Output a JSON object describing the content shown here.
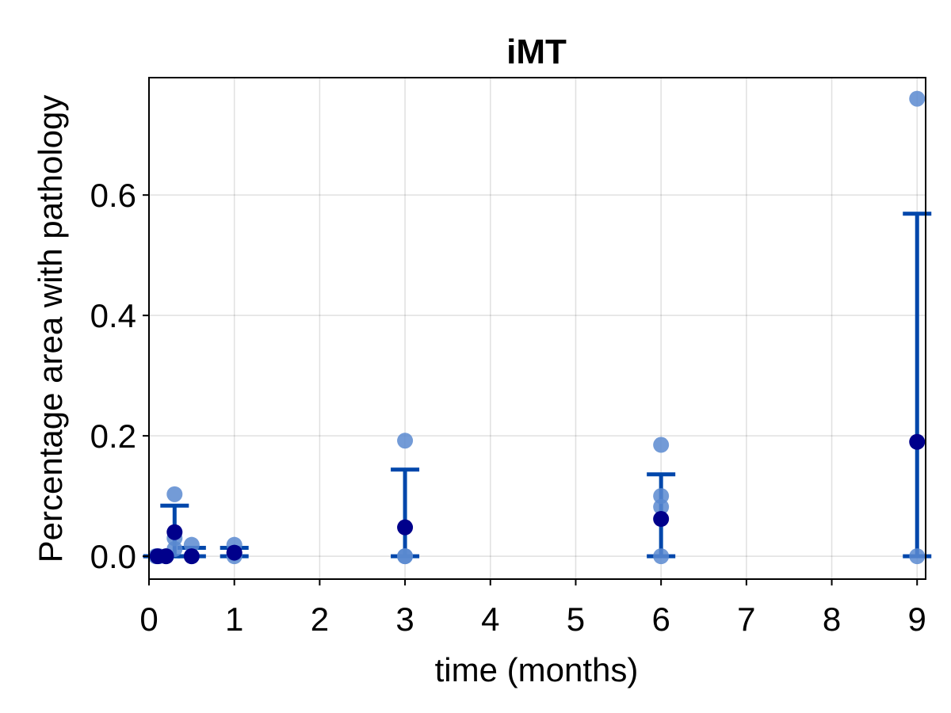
{
  "chart_data": {
    "type": "scatter",
    "title": "iMT",
    "xlabel": "time (months)",
    "ylabel": "Percentage area with pathology",
    "xlim": [
      0,
      9.1
    ],
    "ylim": [
      -0.038,
      0.795
    ],
    "xticks": [
      "0",
      "1",
      "2",
      "3",
      "4",
      "5",
      "6",
      "7",
      "8",
      "9"
    ],
    "yticks": [
      "0.0",
      "0.2",
      "0.4",
      "0.6"
    ],
    "grid": true,
    "colors": {
      "individual": "#5b8ad0",
      "mean": "#00008b",
      "errorbar": "#0047ab"
    },
    "individual_points": [
      {
        "x": 0.08,
        "y": 0.0
      },
      {
        "x": 0.12,
        "y": 0.0
      },
      {
        "x": 0.2,
        "y": 0.0
      },
      {
        "x": 0.3,
        "y": 0.103
      },
      {
        "x": 0.3,
        "y": 0.03
      },
      {
        "x": 0.3,
        "y": 0.012
      },
      {
        "x": 0.5,
        "y": 0.019
      },
      {
        "x": 0.5,
        "y": 0.0
      },
      {
        "x": 1.0,
        "y": 0.019
      },
      {
        "x": 1.0,
        "y": 0.005
      },
      {
        "x": 1.0,
        "y": 0.0
      },
      {
        "x": 3.0,
        "y": 0.192
      },
      {
        "x": 3.0,
        "y": 0.0
      },
      {
        "x": 3.0,
        "y": 0.0
      },
      {
        "x": 6.0,
        "y": 0.185
      },
      {
        "x": 6.0,
        "y": 0.1
      },
      {
        "x": 6.0,
        "y": 0.082
      },
      {
        "x": 6.0,
        "y": 0.0
      },
      {
        "x": 9.0,
        "y": 0.76
      },
      {
        "x": 9.0,
        "y": 0.0
      }
    ],
    "means": [
      {
        "x": 0.1,
        "y": 0.0,
        "lower": 0.0,
        "upper": 0.0
      },
      {
        "x": 0.2,
        "y": 0.0,
        "lower": 0.0,
        "upper": 0.0
      },
      {
        "x": 0.3,
        "y": 0.04,
        "lower": 0.0,
        "upper": 0.084
      },
      {
        "x": 0.5,
        "y": 0.0,
        "lower": 0.0,
        "upper": 0.014
      },
      {
        "x": 1.0,
        "y": 0.006,
        "lower": 0.0,
        "upper": 0.014
      },
      {
        "x": 3.0,
        "y": 0.048,
        "lower": 0.0,
        "upper": 0.144
      },
      {
        "x": 6.0,
        "y": 0.062,
        "lower": 0.0,
        "upper": 0.136
      },
      {
        "x": 9.0,
        "y": 0.19,
        "lower": 0.0,
        "upper": 0.569
      }
    ]
  }
}
